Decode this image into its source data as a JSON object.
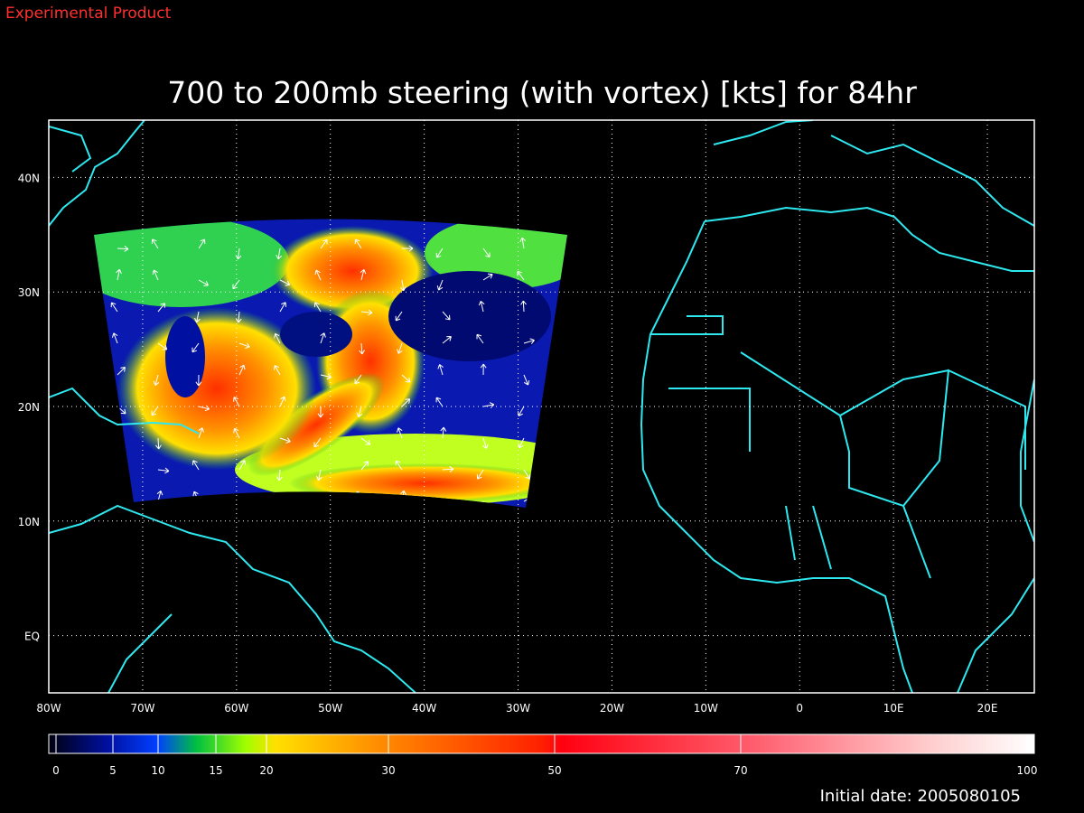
{
  "header": {
    "label": "Experimental Product"
  },
  "map": {
    "title": "700 to 200mb steering (with vortex) [kts] for 84hr",
    "xlim": [
      -80,
      25
    ],
    "xticks": [
      {
        "value": -80,
        "label": "80W"
      },
      {
        "value": -70,
        "label": "70W"
      },
      {
        "value": -60,
        "label": "60W"
      },
      {
        "value": -50,
        "label": "50W"
      },
      {
        "value": -40,
        "label": "40W"
      },
      {
        "value": -30,
        "label": "30W"
      },
      {
        "value": -20,
        "label": "20W"
      },
      {
        "value": -10,
        "label": "10W"
      },
      0,
      {
        "value": 10,
        "label": "10E"
      },
      {
        "value": 20,
        "label": "20E"
      }
    ],
    "ylim": [
      -5,
      45
    ],
    "yticks": [
      {
        "value": 0,
        "label": "EQ"
      },
      {
        "value": 10,
        "label": "10N"
      },
      {
        "value": 20,
        "label": "20N"
      },
      {
        "value": 30,
        "label": "30N"
      },
      {
        "value": 40,
        "label": "40N"
      }
    ],
    "grid": true
  },
  "colorbar": {
    "ticks": [
      0,
      5,
      10,
      15,
      20,
      30,
      50,
      70,
      100
    ]
  },
  "footer": {
    "initial_date": "Initial date: 2005080105"
  }
}
